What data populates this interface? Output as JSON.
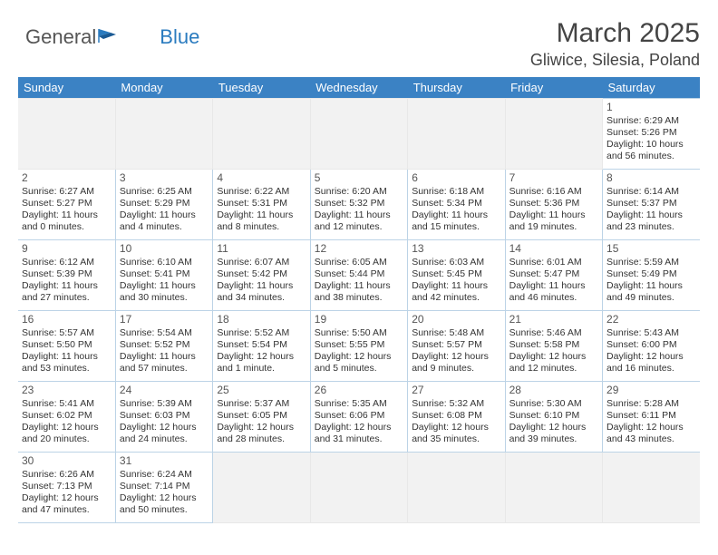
{
  "logo": {
    "text1": "General",
    "text2": "Blue"
  },
  "header": {
    "month": "March 2025",
    "location": "Gliwice, Silesia, Poland"
  },
  "styling": {
    "header_bg": "#3b82c4",
    "header_text_color": "#ffffff",
    "border_color": "#bcd3e6",
    "empty_bg": "#f2f2f2",
    "body_text_color": "#333333",
    "title_color": "#444444",
    "cell_fontsize": 10.5,
    "daynum_fontsize": 12,
    "th_fontsize": 13,
    "month_fontsize": 30,
    "location_fontsize": 18
  },
  "daysOfWeek": [
    "Sunday",
    "Monday",
    "Tuesday",
    "Wednesday",
    "Thursday",
    "Friday",
    "Saturday"
  ],
  "weeks": [
    [
      null,
      null,
      null,
      null,
      null,
      null,
      {
        "n": "1",
        "sr": "Sunrise: 6:29 AM",
        "ss": "Sunset: 5:26 PM",
        "dl": "Daylight: 10 hours and 56 minutes."
      }
    ],
    [
      {
        "n": "2",
        "sr": "Sunrise: 6:27 AM",
        "ss": "Sunset: 5:27 PM",
        "dl": "Daylight: 11 hours and 0 minutes."
      },
      {
        "n": "3",
        "sr": "Sunrise: 6:25 AM",
        "ss": "Sunset: 5:29 PM",
        "dl": "Daylight: 11 hours and 4 minutes."
      },
      {
        "n": "4",
        "sr": "Sunrise: 6:22 AM",
        "ss": "Sunset: 5:31 PM",
        "dl": "Daylight: 11 hours and 8 minutes."
      },
      {
        "n": "5",
        "sr": "Sunrise: 6:20 AM",
        "ss": "Sunset: 5:32 PM",
        "dl": "Daylight: 11 hours and 12 minutes."
      },
      {
        "n": "6",
        "sr": "Sunrise: 6:18 AM",
        "ss": "Sunset: 5:34 PM",
        "dl": "Daylight: 11 hours and 15 minutes."
      },
      {
        "n": "7",
        "sr": "Sunrise: 6:16 AM",
        "ss": "Sunset: 5:36 PM",
        "dl": "Daylight: 11 hours and 19 minutes."
      },
      {
        "n": "8",
        "sr": "Sunrise: 6:14 AM",
        "ss": "Sunset: 5:37 PM",
        "dl": "Daylight: 11 hours and 23 minutes."
      }
    ],
    [
      {
        "n": "9",
        "sr": "Sunrise: 6:12 AM",
        "ss": "Sunset: 5:39 PM",
        "dl": "Daylight: 11 hours and 27 minutes."
      },
      {
        "n": "10",
        "sr": "Sunrise: 6:10 AM",
        "ss": "Sunset: 5:41 PM",
        "dl": "Daylight: 11 hours and 30 minutes."
      },
      {
        "n": "11",
        "sr": "Sunrise: 6:07 AM",
        "ss": "Sunset: 5:42 PM",
        "dl": "Daylight: 11 hours and 34 minutes."
      },
      {
        "n": "12",
        "sr": "Sunrise: 6:05 AM",
        "ss": "Sunset: 5:44 PM",
        "dl": "Daylight: 11 hours and 38 minutes."
      },
      {
        "n": "13",
        "sr": "Sunrise: 6:03 AM",
        "ss": "Sunset: 5:45 PM",
        "dl": "Daylight: 11 hours and 42 minutes."
      },
      {
        "n": "14",
        "sr": "Sunrise: 6:01 AM",
        "ss": "Sunset: 5:47 PM",
        "dl": "Daylight: 11 hours and 46 minutes."
      },
      {
        "n": "15",
        "sr": "Sunrise: 5:59 AM",
        "ss": "Sunset: 5:49 PM",
        "dl": "Daylight: 11 hours and 49 minutes."
      }
    ],
    [
      {
        "n": "16",
        "sr": "Sunrise: 5:57 AM",
        "ss": "Sunset: 5:50 PM",
        "dl": "Daylight: 11 hours and 53 minutes."
      },
      {
        "n": "17",
        "sr": "Sunrise: 5:54 AM",
        "ss": "Sunset: 5:52 PM",
        "dl": "Daylight: 11 hours and 57 minutes."
      },
      {
        "n": "18",
        "sr": "Sunrise: 5:52 AM",
        "ss": "Sunset: 5:54 PM",
        "dl": "Daylight: 12 hours and 1 minute."
      },
      {
        "n": "19",
        "sr": "Sunrise: 5:50 AM",
        "ss": "Sunset: 5:55 PM",
        "dl": "Daylight: 12 hours and 5 minutes."
      },
      {
        "n": "20",
        "sr": "Sunrise: 5:48 AM",
        "ss": "Sunset: 5:57 PM",
        "dl": "Daylight: 12 hours and 9 minutes."
      },
      {
        "n": "21",
        "sr": "Sunrise: 5:46 AM",
        "ss": "Sunset: 5:58 PM",
        "dl": "Daylight: 12 hours and 12 minutes."
      },
      {
        "n": "22",
        "sr": "Sunrise: 5:43 AM",
        "ss": "Sunset: 6:00 PM",
        "dl": "Daylight: 12 hours and 16 minutes."
      }
    ],
    [
      {
        "n": "23",
        "sr": "Sunrise: 5:41 AM",
        "ss": "Sunset: 6:02 PM",
        "dl": "Daylight: 12 hours and 20 minutes."
      },
      {
        "n": "24",
        "sr": "Sunrise: 5:39 AM",
        "ss": "Sunset: 6:03 PM",
        "dl": "Daylight: 12 hours and 24 minutes."
      },
      {
        "n": "25",
        "sr": "Sunrise: 5:37 AM",
        "ss": "Sunset: 6:05 PM",
        "dl": "Daylight: 12 hours and 28 minutes."
      },
      {
        "n": "26",
        "sr": "Sunrise: 5:35 AM",
        "ss": "Sunset: 6:06 PM",
        "dl": "Daylight: 12 hours and 31 minutes."
      },
      {
        "n": "27",
        "sr": "Sunrise: 5:32 AM",
        "ss": "Sunset: 6:08 PM",
        "dl": "Daylight: 12 hours and 35 minutes."
      },
      {
        "n": "28",
        "sr": "Sunrise: 5:30 AM",
        "ss": "Sunset: 6:10 PM",
        "dl": "Daylight: 12 hours and 39 minutes."
      },
      {
        "n": "29",
        "sr": "Sunrise: 5:28 AM",
        "ss": "Sunset: 6:11 PM",
        "dl": "Daylight: 12 hours and 43 minutes."
      }
    ],
    [
      {
        "n": "30",
        "sr": "Sunrise: 6:26 AM",
        "ss": "Sunset: 7:13 PM",
        "dl": "Daylight: 12 hours and 47 minutes."
      },
      {
        "n": "31",
        "sr": "Sunrise: 6:24 AM",
        "ss": "Sunset: 7:14 PM",
        "dl": "Daylight: 12 hours and 50 minutes."
      },
      null,
      null,
      null,
      null,
      null
    ]
  ]
}
